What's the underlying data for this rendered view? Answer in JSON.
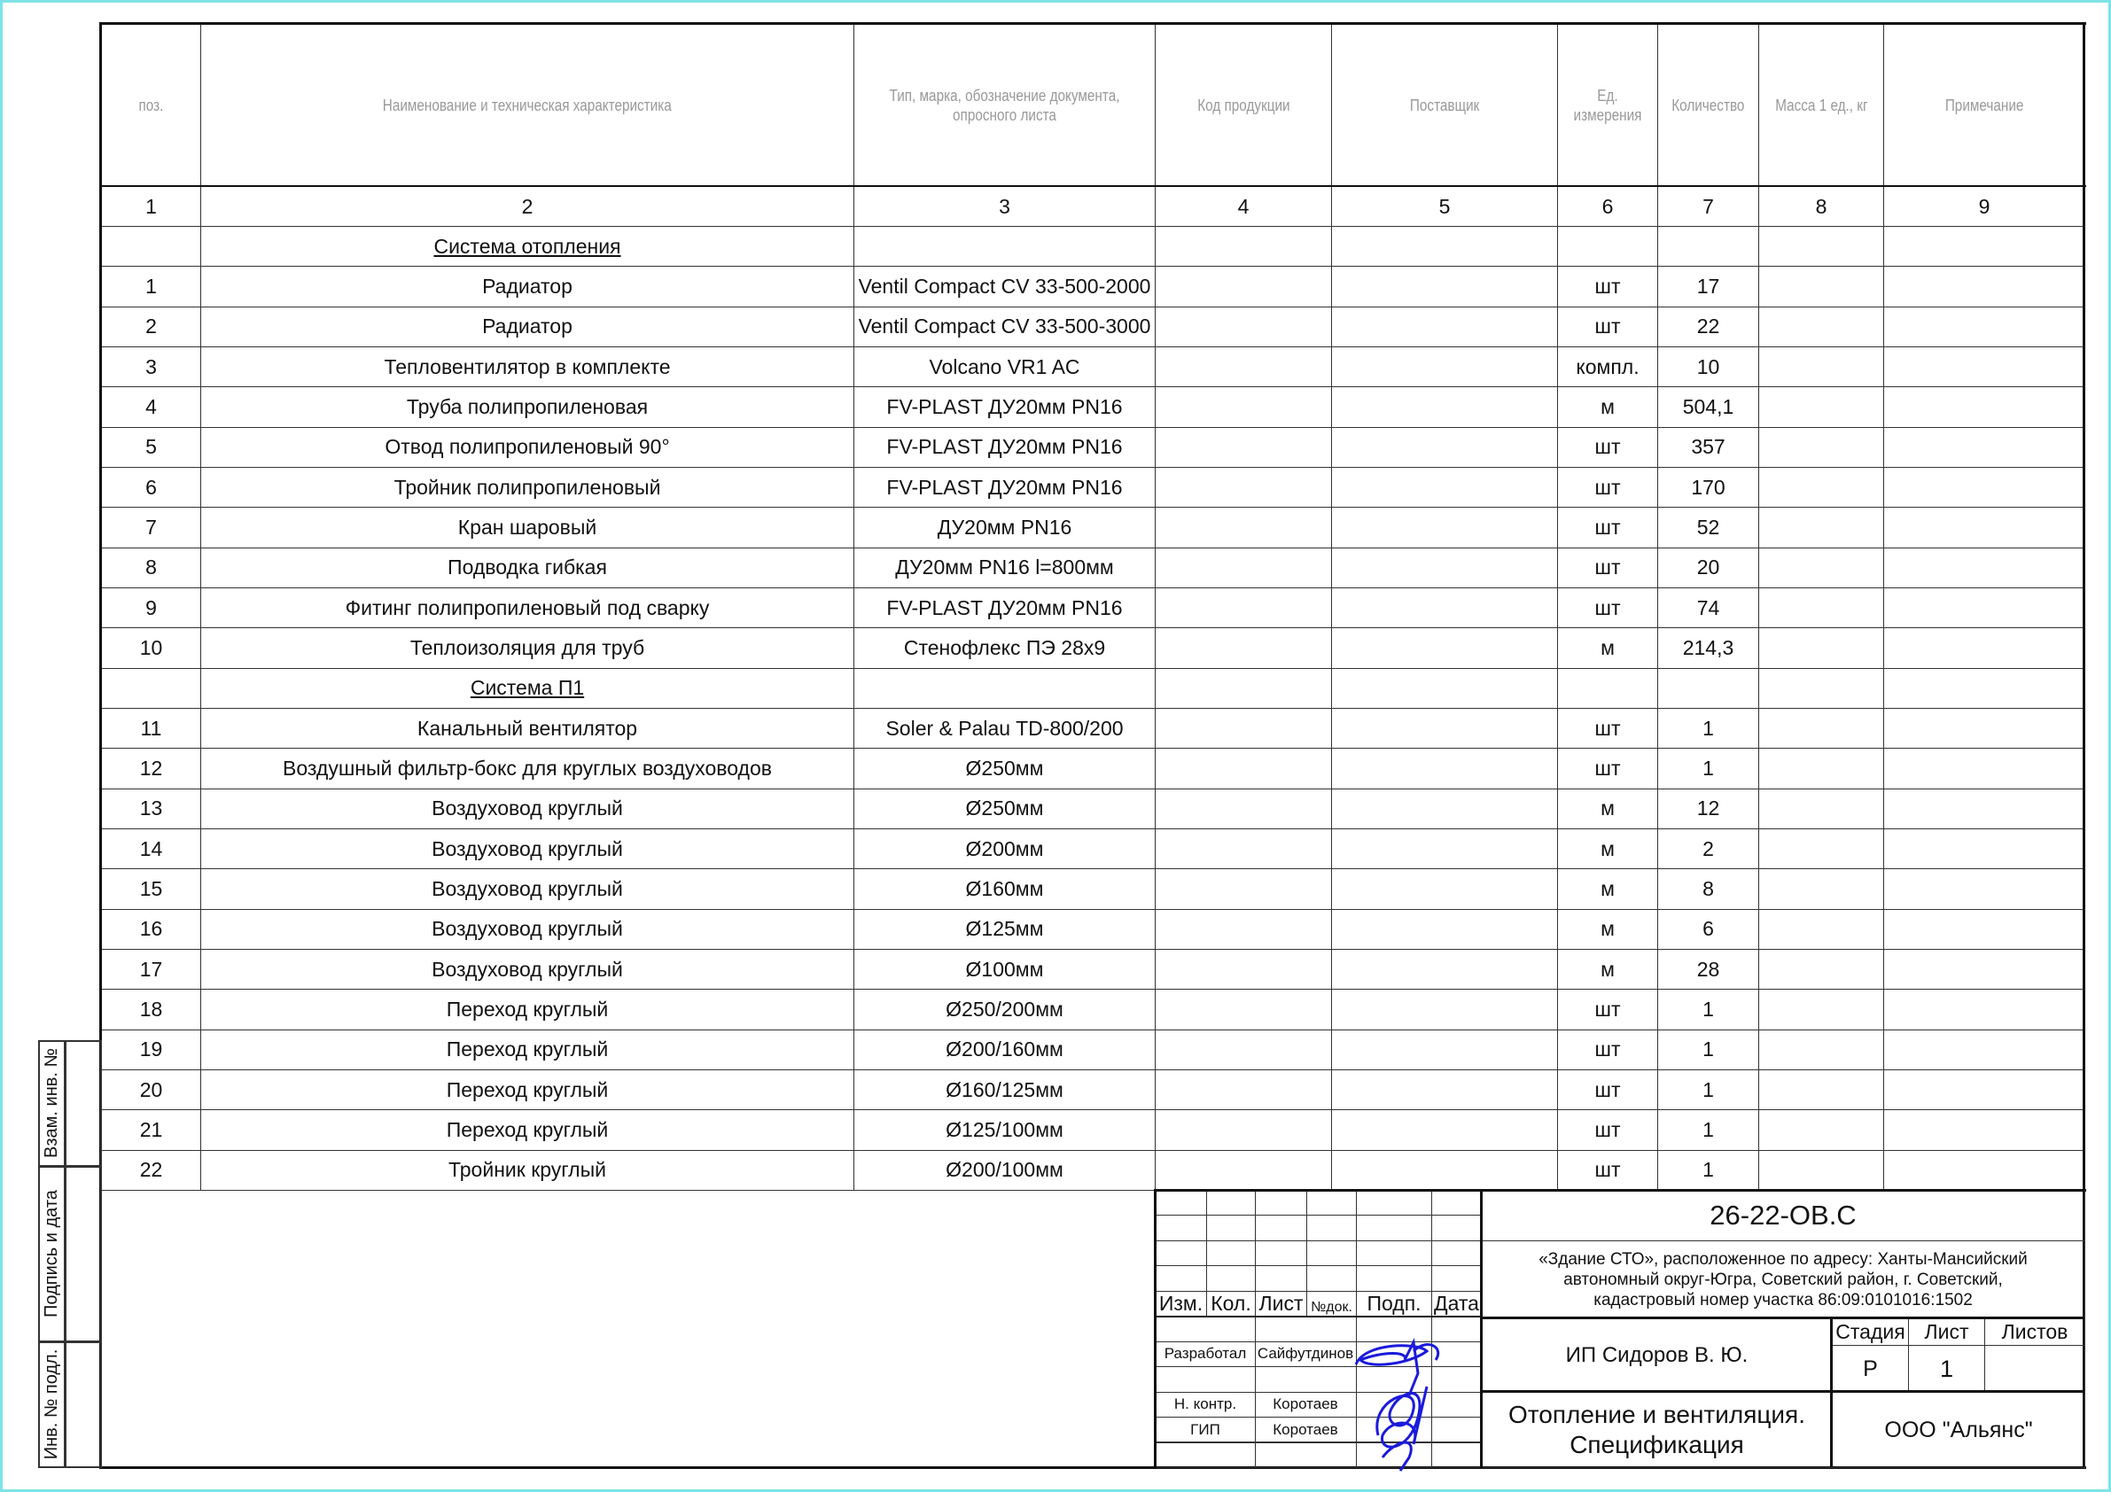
{
  "table": {
    "headers": [
      "поз.",
      "Наименование и техническая характеристика",
      "Тип, марка, обозначение документа, опросного листа",
      "Код продукции",
      "Поставщик",
      "Ед. измерения",
      "Количество",
      "Масса 1 ед., кг",
      "Примечание"
    ],
    "column_numbers": [
      "1",
      "2",
      "3",
      "4",
      "5",
      "6",
      "7",
      "8",
      "9"
    ],
    "rows": [
      {
        "section": "Система отопления"
      },
      {
        "pos": "1",
        "name": "Радиатор",
        "type": "Ventil Compact CV 33-500-2000",
        "unit": "шт",
        "qty": "17"
      },
      {
        "pos": "2",
        "name": "Радиатор",
        "type": "Ventil Compact CV 33-500-3000",
        "unit": "шт",
        "qty": "22"
      },
      {
        "pos": "3",
        "name": "Тепловентилятор в комплекте",
        "type": "Volcano VR1 AC",
        "unit": "компл.",
        "qty": "10"
      },
      {
        "pos": "4",
        "name": "Труба полипропиленовая",
        "type": "FV-PLAST ДУ20мм PN16",
        "unit": "м",
        "qty": "504,1"
      },
      {
        "pos": "5",
        "name": "Отвод полипропиленовый 90°",
        "type": "FV-PLAST ДУ20мм PN16",
        "unit": "шт",
        "qty": "357"
      },
      {
        "pos": "6",
        "name": "Тройник полипропиленовый",
        "type": "FV-PLAST ДУ20мм PN16",
        "unit": "шт",
        "qty": "170"
      },
      {
        "pos": "7",
        "name": "Кран шаровый",
        "type": "ДУ20мм PN16",
        "unit": "шт",
        "qty": "52"
      },
      {
        "pos": "8",
        "name": "Подводка гибкая",
        "type": "ДУ20мм PN16 l=800мм",
        "unit": "шт",
        "qty": "20"
      },
      {
        "pos": "9",
        "name": "Фитинг полипропиленовый под сварку",
        "type": "FV-PLAST ДУ20мм PN16",
        "unit": "шт",
        "qty": "74"
      },
      {
        "pos": "10",
        "name": "Теплоизоляция для труб",
        "type": "Стенофлекс ПЭ 28x9",
        "unit": "м",
        "qty": "214,3"
      },
      {
        "section": "Система П1"
      },
      {
        "pos": "11",
        "name": "Канальный вентилятор",
        "type": "Soler & Palau TD-800/200",
        "unit": "шт",
        "qty": "1"
      },
      {
        "pos": "12",
        "name": "Воздушный фильтр-бокс для круглых воздуховодов",
        "type": "Ø250мм",
        "unit": "шт",
        "qty": "1"
      },
      {
        "pos": "13",
        "name": "Воздуховод круглый",
        "type": "Ø250мм",
        "unit": "м",
        "qty": "12"
      },
      {
        "pos": "14",
        "name": "Воздуховод круглый",
        "type": "Ø200мм",
        "unit": "м",
        "qty": "2"
      },
      {
        "pos": "15",
        "name": "Воздуховод круглый",
        "type": "Ø160мм",
        "unit": "м",
        "qty": "8"
      },
      {
        "pos": "16",
        "name": "Воздуховод круглый",
        "type": "Ø125мм",
        "unit": "м",
        "qty": "6"
      },
      {
        "pos": "17",
        "name": "Воздуховод круглый",
        "type": "Ø100мм",
        "unit": "м",
        "qty": "28"
      },
      {
        "pos": "18",
        "name": "Переход круглый",
        "type": "Ø250/200мм",
        "unit": "шт",
        "qty": "1"
      },
      {
        "pos": "19",
        "name": "Переход круглый",
        "type": "Ø200/160мм",
        "unit": "шт",
        "qty": "1"
      },
      {
        "pos": "20",
        "name": "Переход круглый",
        "type": "Ø160/125мм",
        "unit": "шт",
        "qty": "1"
      },
      {
        "pos": "21",
        "name": "Переход круглый",
        "type": "Ø125/100мм",
        "unit": "шт",
        "qty": "1"
      },
      {
        "pos": "22",
        "name": "Тройник круглый",
        "type": "Ø200/100мм",
        "unit": "шт",
        "qty": "1"
      }
    ]
  },
  "stamp_side": {
    "replace": "Взам. инв. №",
    "sign_date": "Подпись и дата",
    "inv_no": "Инв. № подл."
  },
  "title_block": {
    "code": "26-22-ОВ.С",
    "object": "«Здание СТО», расположенное по адресу: Ханты-Мансийский автономный округ-Югра, Советский район, г. Советский, кадастровый номер участка 86:09:0101016:1502",
    "rev_headers": [
      "Изм.",
      "Кол.",
      "Лист",
      "№док.",
      "Подп.",
      "Дата"
    ],
    "developed_label": "Разработал",
    "developed_name": "Сайфутдинов",
    "norm_label": "Н. контр.",
    "norm_name": "Коротаев",
    "gip_label": "ГИП",
    "gip_name": "Коротаев",
    "contractor": "ИП Сидоров В. Ю.",
    "stage_label": "Стадия",
    "sheet_label": "Лист",
    "sheets_label": "Листов",
    "stage": "Р",
    "sheet": "1",
    "doc_title": "Отопление и вентиляция. Спецификация",
    "company": "ООО \"Альянс\""
  },
  "colors": {
    "frame": "#7fe3e6",
    "signature": "#1a1adc",
    "header_text": "#999999"
  }
}
